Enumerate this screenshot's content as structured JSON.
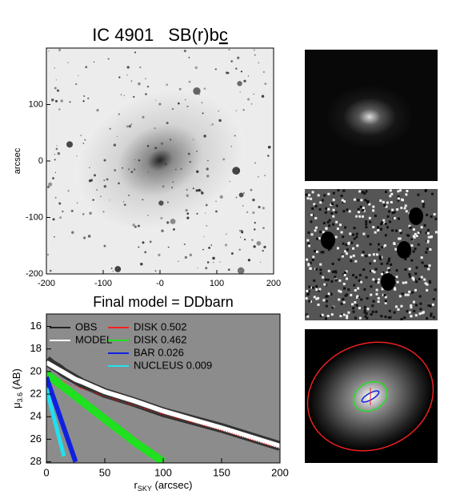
{
  "chart_data": [
    {
      "type": "image",
      "title_parts": [
        "IC 4901",
        "SB(r)b",
        "c"
      ],
      "ylabel": "arcsec",
      "xlim": [
        -200,
        200
      ],
      "xticks": [
        -200,
        -100,
        {
          "value": 0,
          "label": "-0"
        },
        100,
        200
      ],
      "ylim": [
        -200,
        200
      ],
      "yticks": [
        -200,
        -100,
        0,
        100
      ]
    },
    {
      "type": "line",
      "title": "Final model = DDbarn",
      "ylabel": {
        "symbol": "μ",
        "sub": "3.6",
        "rest": " (AB)"
      },
      "xlabel": {
        "symbol": "r",
        "sub": "SKY",
        "rest": " (arcsec)"
      },
      "x": [
        0,
        5,
        10,
        15,
        20,
        25,
        30,
        50,
        75,
        100,
        150,
        200
      ],
      "xlim": [
        0,
        200
      ],
      "xticks": [
        0,
        50,
        100,
        150,
        200
      ],
      "ylim": [
        28.1,
        14.9
      ],
      "yticks": [
        16,
        18,
        20,
        22,
        24,
        26,
        28
      ],
      "series": [
        {
          "name": "OBS",
          "color": "#222222",
          "values": [
            19.0,
            19.4,
            19.7,
            20.1,
            20.4,
            20.7,
            21.0,
            21.9,
            22.7,
            23.6,
            25.0,
            26.6
          ]
        },
        {
          "name": "MODEL",
          "color": "#ffffff",
          "values": [
            19.2,
            19.5,
            19.8,
            20.1,
            20.4,
            20.7,
            20.9,
            21.8,
            22.6,
            23.5,
            25.0,
            26.6
          ]
        },
        {
          "name": "DISK 0.502",
          "color": "#ff2020",
          "values": [
            20.3,
            20.5,
            20.7,
            20.9,
            21.1,
            21.3,
            21.5,
            22.2,
            23.0,
            23.8,
            25.2,
            26.8
          ]
        },
        {
          "name": "DISK 0.462",
          "color": "#20e020",
          "values": [
            20.2,
            20.6,
            21.0,
            21.4,
            21.8,
            22.2,
            22.6,
            24.2,
            26.2,
            28.0,
            null,
            null
          ]
        },
        {
          "name": "BAR 0.026",
          "color": "#1020e0",
          "values": [
            20.5,
            22.0,
            23.5,
            25.0,
            26.5,
            28.0,
            null,
            null,
            null,
            null,
            null,
            null
          ]
        },
        {
          "name": "NUCLEUS 0.009",
          "color": "#20e0f0",
          "values": [
            21.5,
            23.5,
            25.5,
            27.5,
            null,
            null,
            null,
            null,
            null,
            null,
            null,
            null
          ]
        }
      ]
    }
  ]
}
